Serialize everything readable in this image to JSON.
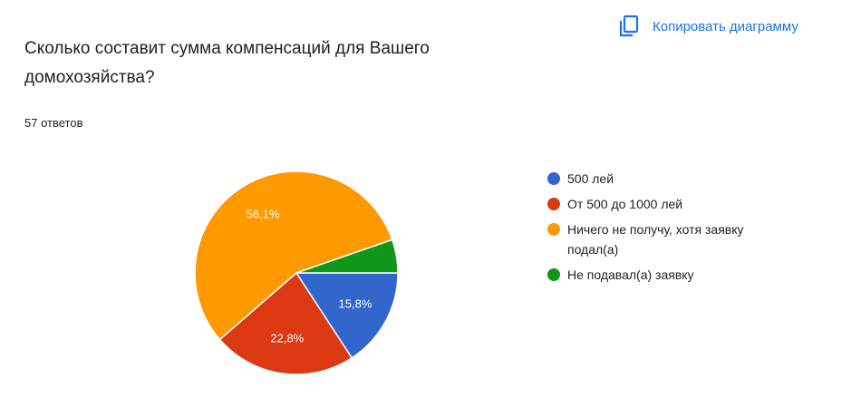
{
  "copy_button": "Копировать диаграмму",
  "chart_data": {
    "type": "pie",
    "title": "Сколько составит сумма компенсаций для Вашего домохозяйства?",
    "subtitle": "57 ответов",
    "categories": [
      "500 лей",
      "От 500 до 1000 лей",
      "Ничего не получу, хотя заявку подал(а)",
      "Не подавал(а) заявку"
    ],
    "values": [
      15.8,
      22.8,
      56.1,
      5.3
    ],
    "value_labels": [
      "15,8%",
      "22,8%",
      "56,1%",
      null
    ],
    "colors": [
      "#3366cc",
      "#dc3912",
      "#ff9900",
      "#109618"
    ],
    "legend": "right"
  }
}
